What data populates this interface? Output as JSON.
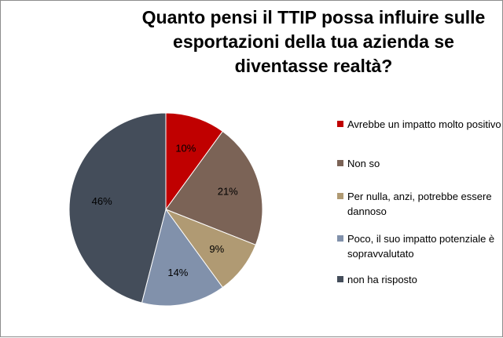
{
  "chart_data": {
    "type": "pie",
    "title": "Quanto pensi il TTIP possa influire sulle esportazioni della tua azienda se diventasse realtà?",
    "categories": [
      "Avrebbe un impatto molto positivo",
      "Non so",
      "Per nulla, anzi, potrebbe essere dannoso",
      "Poco, il suo impatto potenziale è sopravvalutato",
      "non ha risposto"
    ],
    "values": [
      10,
      21,
      9,
      14,
      46
    ],
    "data_labels": [
      "10%",
      "21%",
      "9%",
      "14%",
      "46%"
    ],
    "colors": [
      "#c00000",
      "#7b6356",
      "#b09a73",
      "#8191ab",
      "#444d5a"
    ],
    "legend_position": "right",
    "start_angle": "12 o'clock, clockwise"
  }
}
